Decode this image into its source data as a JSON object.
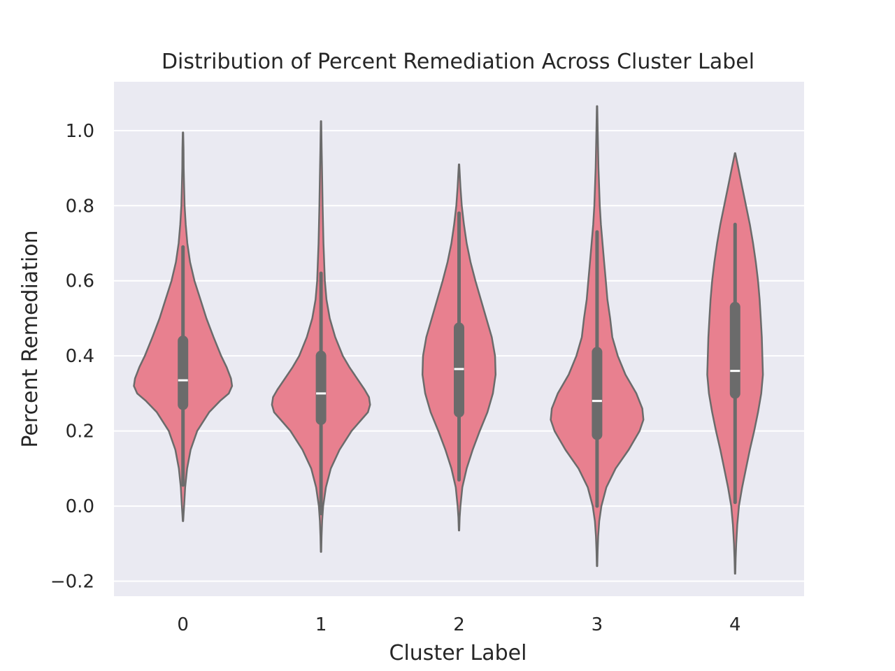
{
  "chart_data": {
    "type": "violin",
    "title": "Distribution of Percent Remediation Across Cluster Label",
    "xlabel": "Cluster Label",
    "ylabel": "Percent Remediation",
    "categories": [
      "0",
      "1",
      "2",
      "3",
      "4"
    ],
    "ylim": [
      -0.24,
      1.13
    ],
    "yticks": [
      -0.2,
      0.0,
      0.2,
      0.4,
      0.6,
      0.8,
      1.0
    ],
    "ytick_labels": [
      "−0.2",
      "0.0",
      "0.2",
      "0.4",
      "0.6",
      "0.8",
      "1.0"
    ],
    "grid": true,
    "colors": {
      "violin_fill": "#e8808f",
      "violin_edge": "#6b6b6b",
      "box": "#6b6b6b",
      "median": "#ffffff",
      "background": "#eaeaf2",
      "grid": "#ffffff"
    },
    "violins": [
      {
        "category": "0",
        "box": {
          "whisker_low": 0.056,
          "q1": 0.27,
          "median": 0.335,
          "q3": 0.44,
          "whisker_high": 0.69
        },
        "kde_range": [
          -0.04,
          0.995
        ],
        "profile": [
          [
            -0.04,
            0.004
          ],
          [
            -0.02,
            0.012
          ],
          [
            0.0,
            0.02
          ],
          [
            0.05,
            0.04
          ],
          [
            0.1,
            0.075
          ],
          [
            0.15,
            0.14
          ],
          [
            0.2,
            0.26
          ],
          [
            0.25,
            0.48
          ],
          [
            0.28,
            0.68
          ],
          [
            0.3,
            0.84
          ],
          [
            0.32,
            0.9
          ],
          [
            0.34,
            0.88
          ],
          [
            0.37,
            0.8
          ],
          [
            0.4,
            0.7
          ],
          [
            0.45,
            0.56
          ],
          [
            0.5,
            0.43
          ],
          [
            0.55,
            0.32
          ],
          [
            0.6,
            0.21
          ],
          [
            0.65,
            0.13
          ],
          [
            0.7,
            0.08
          ],
          [
            0.75,
            0.05
          ],
          [
            0.8,
            0.03
          ],
          [
            0.85,
            0.02
          ],
          [
            0.9,
            0.013
          ],
          [
            0.95,
            0.01
          ],
          [
            0.995,
            0.004
          ]
        ]
      },
      {
        "category": "1",
        "box": {
          "whisker_low": -0.02,
          "q1": 0.23,
          "median": 0.3,
          "q3": 0.4,
          "whisker_high": 0.62
        },
        "kde_range": [
          -0.122,
          1.025
        ],
        "profile": [
          [
            -0.122,
            0.004
          ],
          [
            -0.08,
            0.01
          ],
          [
            -0.04,
            0.02
          ],
          [
            0.0,
            0.04
          ],
          [
            0.05,
            0.09
          ],
          [
            0.1,
            0.18
          ],
          [
            0.15,
            0.34
          ],
          [
            0.2,
            0.56
          ],
          [
            0.23,
            0.74
          ],
          [
            0.25,
            0.86
          ],
          [
            0.27,
            0.9
          ],
          [
            0.29,
            0.88
          ],
          [
            0.31,
            0.8
          ],
          [
            0.34,
            0.66
          ],
          [
            0.37,
            0.52
          ],
          [
            0.4,
            0.4
          ],
          [
            0.45,
            0.26
          ],
          [
            0.5,
            0.16
          ],
          [
            0.55,
            0.1
          ],
          [
            0.6,
            0.07
          ],
          [
            0.7,
            0.045
          ],
          [
            0.8,
            0.03
          ],
          [
            0.9,
            0.018
          ],
          [
            0.95,
            0.012
          ],
          [
            1.025,
            0.004
          ]
        ]
      },
      {
        "category": "2",
        "box": {
          "whisker_low": 0.07,
          "q1": 0.25,
          "median": 0.365,
          "q3": 0.475,
          "whisker_high": 0.78
        },
        "kde_range": [
          -0.065,
          0.91
        ],
        "profile": [
          [
            -0.065,
            0.004
          ],
          [
            -0.03,
            0.012
          ],
          [
            0.0,
            0.025
          ],
          [
            0.05,
            0.06
          ],
          [
            0.1,
            0.14
          ],
          [
            0.15,
            0.25
          ],
          [
            0.2,
            0.38
          ],
          [
            0.25,
            0.52
          ],
          [
            0.3,
            0.62
          ],
          [
            0.35,
            0.67
          ],
          [
            0.4,
            0.66
          ],
          [
            0.45,
            0.6
          ],
          [
            0.5,
            0.5
          ],
          [
            0.55,
            0.4
          ],
          [
            0.6,
            0.3
          ],
          [
            0.65,
            0.21
          ],
          [
            0.7,
            0.14
          ],
          [
            0.75,
            0.09
          ],
          [
            0.8,
            0.05
          ],
          [
            0.85,
            0.025
          ],
          [
            0.91,
            0.004
          ]
        ]
      },
      {
        "category": "3",
        "box": {
          "whisker_low": 0.0,
          "q1": 0.19,
          "median": 0.28,
          "q3": 0.41,
          "whisker_high": 0.73
        },
        "kde_range": [
          -0.16,
          1.065
        ],
        "profile": [
          [
            -0.16,
            0.004
          ],
          [
            -0.12,
            0.01
          ],
          [
            -0.08,
            0.02
          ],
          [
            -0.04,
            0.04
          ],
          [
            0.0,
            0.08
          ],
          [
            0.05,
            0.17
          ],
          [
            0.1,
            0.34
          ],
          [
            0.15,
            0.58
          ],
          [
            0.2,
            0.78
          ],
          [
            0.23,
            0.85
          ],
          [
            0.26,
            0.83
          ],
          [
            0.3,
            0.72
          ],
          [
            0.35,
            0.52
          ],
          [
            0.4,
            0.38
          ],
          [
            0.45,
            0.28
          ],
          [
            0.5,
            0.24
          ],
          [
            0.55,
            0.19
          ],
          [
            0.6,
            0.16
          ],
          [
            0.65,
            0.13
          ],
          [
            0.7,
            0.1
          ],
          [
            0.75,
            0.07
          ],
          [
            0.8,
            0.05
          ],
          [
            0.9,
            0.025
          ],
          [
            1.0,
            0.012
          ],
          [
            1.065,
            0.004
          ]
        ]
      },
      {
        "category": "4",
        "box": {
          "whisker_low": 0.01,
          "q1": 0.3,
          "median": 0.36,
          "q3": 0.53,
          "whisker_high": 0.75
        },
        "kde_range": [
          -0.18,
          0.94
        ],
        "profile": [
          [
            -0.18,
            0.004
          ],
          [
            -0.14,
            0.01
          ],
          [
            -0.1,
            0.02
          ],
          [
            -0.05,
            0.04
          ],
          [
            0.0,
            0.07
          ],
          [
            0.05,
            0.13
          ],
          [
            0.1,
            0.2
          ],
          [
            0.15,
            0.27
          ],
          [
            0.2,
            0.35
          ],
          [
            0.25,
            0.42
          ],
          [
            0.3,
            0.48
          ],
          [
            0.35,
            0.51
          ],
          [
            0.4,
            0.5
          ],
          [
            0.45,
            0.49
          ],
          [
            0.5,
            0.47
          ],
          [
            0.55,
            0.45
          ],
          [
            0.6,
            0.42
          ],
          [
            0.65,
            0.38
          ],
          [
            0.7,
            0.33
          ],
          [
            0.75,
            0.27
          ],
          [
            0.8,
            0.2
          ],
          [
            0.85,
            0.13
          ],
          [
            0.9,
            0.06
          ],
          [
            0.94,
            0.004
          ]
        ]
      }
    ]
  }
}
